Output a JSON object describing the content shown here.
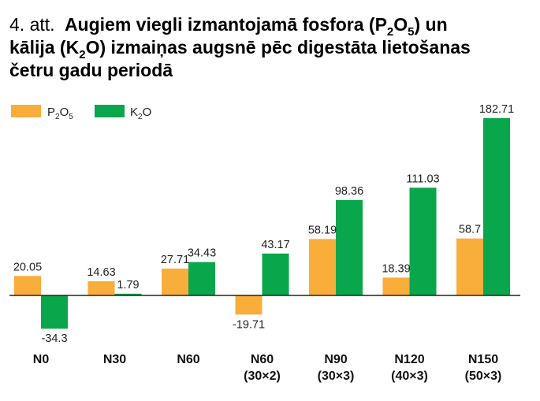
{
  "figure": {
    "title_prefix": "4. att.",
    "title_main_line1": "Augiem viegli izmantojamā fosfora (P",
    "title_main_line1_sub": "2",
    "title_main_line1_mid": "O",
    "title_main_line1_sub2": "5",
    "title_main_line1_end": ") un",
    "title_line2_a": "kālija (K",
    "title_line2_sub": "2",
    "title_line2_b": "O) izmaiņas augsnē pēc digestāta lietošanas",
    "title_line3": "četru gadu periodā"
  },
  "legend": [
    {
      "main": "P",
      "sub1": "2",
      "mid": "O",
      "sub2": "5",
      "color": "#f9ad3b"
    },
    {
      "main": "K",
      "sub1": "2",
      "mid": "O",
      "sub2": "",
      "color": "#0aa64b"
    }
  ],
  "chart_data": {
    "type": "bar",
    "categories": [
      "N0",
      "N30",
      "N60",
      "N60 (30×2)",
      "N90 (30×3)",
      "N120 (40×3)",
      "N150 (50×3)"
    ],
    "category_lines": [
      [
        "N0"
      ],
      [
        "N30"
      ],
      [
        "N60"
      ],
      [
        "N60",
        "(30×2)"
      ],
      [
        "N90",
        "(30×3)"
      ],
      [
        "N120",
        "(40×3)"
      ],
      [
        "N150",
        "(50×3)"
      ]
    ],
    "series": [
      {
        "name": "P2O5",
        "color": "#f9ad3b",
        "values": [
          20.05,
          14.63,
          27.71,
          -19.71,
          58.19,
          18.39,
          58.7
        ],
        "labels": [
          "20.05",
          "14.63",
          "27.71",
          "-19.71",
          "58.19",
          "18.39",
          "58.7"
        ]
      },
      {
        "name": "K2O",
        "color": "#0aa64b",
        "values": [
          -34.3,
          1.79,
          34.43,
          43.17,
          98.36,
          111.03,
          182.71
        ],
        "labels": [
          "-34.3",
          "1.79",
          "34.43",
          "43.17",
          "98.36",
          "111.03",
          "182.71"
        ]
      }
    ],
    "ylim": [
      -34.3,
      182.71
    ],
    "grid": false,
    "legend_position": "top-left"
  }
}
